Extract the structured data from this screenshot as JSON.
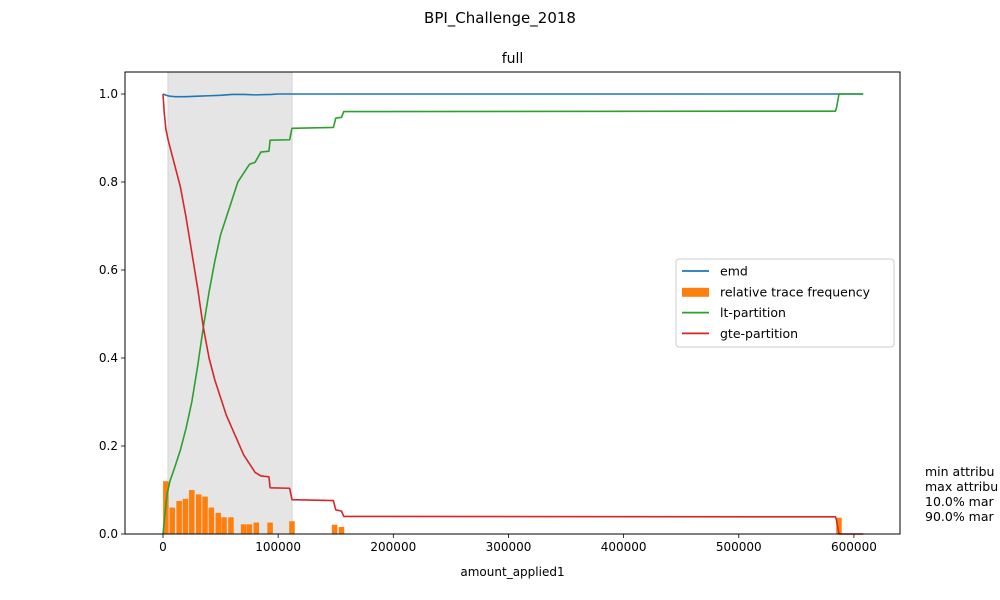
{
  "figure": {
    "suptitle": "BPI_Challenge_2018",
    "annotation_lines": [
      "min attribu",
      "max attribu",
      "10.0% mar",
      "90.0% mar"
    ]
  },
  "chart_data": {
    "type": "line",
    "title": "full",
    "xlabel": "amount_applied1",
    "ylabel": "",
    "xlim": [
      -33000,
      640000
    ],
    "ylim": [
      0,
      1.05
    ],
    "xticks": [
      0,
      100000,
      200000,
      300000,
      400000,
      500000,
      600000
    ],
    "yticks": [
      0.0,
      0.2,
      0.4,
      0.6,
      0.8,
      1.0
    ],
    "ytick_labels": [
      "0.0",
      "0.2",
      "0.4",
      "0.6",
      "0.8",
      "1.0"
    ],
    "grid": false,
    "legend_position": "center-right",
    "shaded_region": {
      "x": [
        4300,
        112000
      ],
      "color": "#e5e5e5"
    },
    "series": [
      {
        "name": "emd",
        "kind": "line",
        "color": "#1f77b4",
        "points": [
          [
            0,
            1.0
          ],
          [
            2000,
            0.998
          ],
          [
            4000,
            0.996
          ],
          [
            6000,
            0.995
          ],
          [
            10000,
            0.994
          ],
          [
            20000,
            0.994
          ],
          [
            30000,
            0.995
          ],
          [
            40000,
            0.996
          ],
          [
            50000,
            0.997
          ],
          [
            60000,
            0.999
          ],
          [
            70000,
            0.999
          ],
          [
            80000,
            0.998
          ],
          [
            94000,
            0.999
          ],
          [
            100000,
            1.0
          ],
          [
            200000,
            1.0
          ],
          [
            400000,
            1.0
          ],
          [
            608000,
            1.0
          ]
        ]
      },
      {
        "name": "relative trace frequency",
        "kind": "bar",
        "color": "#ff7f0e",
        "bar_width": 4800,
        "bars": [
          [
            2500,
            0.12
          ],
          [
            8000,
            0.06
          ],
          [
            14000,
            0.075
          ],
          [
            19500,
            0.08
          ],
          [
            25000,
            0.1
          ],
          [
            31000,
            0.09
          ],
          [
            36500,
            0.085
          ],
          [
            42000,
            0.06
          ],
          [
            48000,
            0.048
          ],
          [
            53000,
            0.038
          ],
          [
            59000,
            0.038
          ],
          [
            70000,
            0.022
          ],
          [
            75000,
            0.022
          ],
          [
            81000,
            0.026
          ],
          [
            93000,
            0.026
          ],
          [
            112000,
            0.029
          ],
          [
            149000,
            0.021
          ],
          [
            155000,
            0.016
          ],
          [
            587000,
            0.037
          ]
        ]
      },
      {
        "name": "lt-partition",
        "kind": "line",
        "color": "#2ca02c",
        "points": [
          [
            0,
            0.0
          ],
          [
            1500,
            0.04
          ],
          [
            3500,
            0.09
          ],
          [
            6000,
            0.12
          ],
          [
            10000,
            0.15
          ],
          [
            15000,
            0.19
          ],
          [
            20000,
            0.24
          ],
          [
            25000,
            0.3
          ],
          [
            30000,
            0.38
          ],
          [
            35000,
            0.47
          ],
          [
            40000,
            0.55
          ],
          [
            45000,
            0.62
          ],
          [
            50000,
            0.68
          ],
          [
            55000,
            0.72
          ],
          [
            60000,
            0.76
          ],
          [
            65000,
            0.8
          ],
          [
            70000,
            0.82
          ],
          [
            75000,
            0.84
          ],
          [
            80000,
            0.845
          ],
          [
            85000,
            0.868
          ],
          [
            92000,
            0.87
          ],
          [
            93000,
            0.895
          ],
          [
            110000,
            0.896
          ],
          [
            112000,
            0.922
          ],
          [
            148000,
            0.924
          ],
          [
            150000,
            0.945
          ],
          [
            155000,
            0.947
          ],
          [
            157000,
            0.96
          ],
          [
            584000,
            0.961
          ],
          [
            585000,
            0.97
          ],
          [
            587000,
            1.0
          ],
          [
            608000,
            1.0
          ]
        ]
      },
      {
        "name": "gte-partition",
        "kind": "line",
        "color": "#d62728",
        "points": [
          [
            0,
            1.0
          ],
          [
            1000,
            0.96
          ],
          [
            2500,
            0.92
          ],
          [
            4500,
            0.895
          ],
          [
            7000,
            0.87
          ],
          [
            10000,
            0.84
          ],
          [
            15000,
            0.79
          ],
          [
            20000,
            0.72
          ],
          [
            25000,
            0.64
          ],
          [
            30000,
            0.56
          ],
          [
            35000,
            0.47
          ],
          [
            40000,
            0.4
          ],
          [
            45000,
            0.35
          ],
          [
            50000,
            0.31
          ],
          [
            55000,
            0.27
          ],
          [
            60000,
            0.24
          ],
          [
            65000,
            0.21
          ],
          [
            70000,
            0.18
          ],
          [
            75000,
            0.16
          ],
          [
            80000,
            0.14
          ],
          [
            85000,
            0.132
          ],
          [
            92000,
            0.13
          ],
          [
            93000,
            0.105
          ],
          [
            110000,
            0.104
          ],
          [
            112000,
            0.078
          ],
          [
            148000,
            0.076
          ],
          [
            150000,
            0.055
          ],
          [
            155000,
            0.052
          ],
          [
            157000,
            0.04
          ],
          [
            584000,
            0.039
          ],
          [
            585000,
            0.03
          ],
          [
            587000,
            0.0
          ],
          [
            608000,
            0.0
          ]
        ]
      }
    ]
  }
}
